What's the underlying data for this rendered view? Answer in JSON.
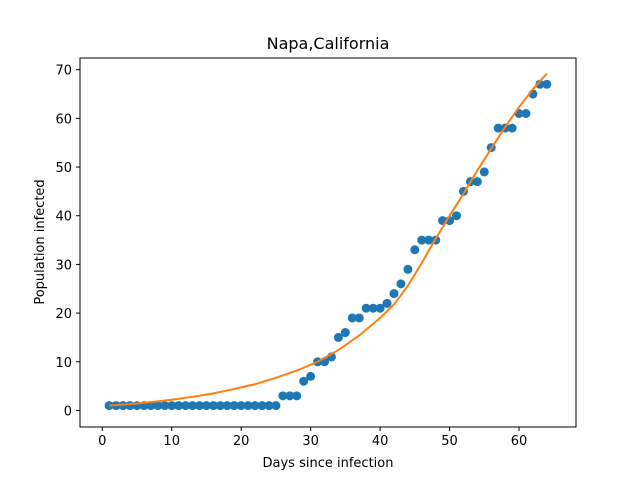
{
  "chart_data": {
    "type": "scatter",
    "title": "Napa,California",
    "xlabel": "Days since infection",
    "ylabel": "Population infected",
    "xlim": [
      -3.2,
      68.2
    ],
    "ylim": [
      -3.4,
      72.4
    ],
    "xticks": [
      0,
      10,
      20,
      30,
      40,
      50,
      60
    ],
    "yticks": [
      0,
      10,
      20,
      30,
      40,
      50,
      60,
      70
    ],
    "grid": false,
    "series": [
      {
        "kind": "scatter",
        "color": "#1f77b4",
        "x": [
          1,
          2,
          3,
          4,
          5,
          6,
          7,
          8,
          9,
          10,
          11,
          12,
          13,
          14,
          15,
          16,
          17,
          18,
          19,
          20,
          21,
          22,
          23,
          24,
          25,
          26,
          27,
          28,
          29,
          30,
          31,
          32,
          33,
          34,
          35,
          36,
          37,
          38,
          39,
          40,
          41,
          42,
          43,
          44,
          45,
          46,
          47,
          48,
          49,
          50,
          51,
          52,
          53,
          54,
          55,
          56,
          57,
          58,
          59,
          60,
          61,
          62,
          63,
          64
        ],
        "y": [
          1,
          1,
          1,
          1,
          1,
          1,
          1,
          1,
          1,
          1,
          1,
          1,
          1,
          1,
          1,
          1,
          1,
          1,
          1,
          1,
          1,
          1,
          1,
          1,
          1,
          3,
          3,
          3,
          6,
          7,
          10,
          10,
          11,
          15,
          16,
          19,
          19,
          21,
          21,
          21,
          22,
          24,
          26,
          29,
          33,
          35,
          35,
          35,
          39,
          39,
          40,
          45,
          47,
          47,
          49,
          54,
          58,
          58,
          58,
          61,
          61,
          65,
          67,
          67
        ]
      },
      {
        "kind": "line",
        "color": "#ff7f0e",
        "x": [
          1,
          4,
          7,
          10,
          13,
          16,
          19,
          22,
          25,
          28,
          31,
          34,
          37,
          40,
          42,
          44,
          46,
          48,
          50,
          52,
          54,
          56,
          58,
          60,
          62,
          64
        ],
        "y": [
          1.0,
          1.3,
          1.7,
          2.2,
          2.8,
          3.5,
          4.4,
          5.4,
          6.7,
          8.2,
          10.0,
          12.4,
          15.4,
          19.0,
          21.8,
          25.6,
          30.3,
          35.3,
          40.0,
          44.5,
          49.3,
          53.8,
          58.2,
          62.3,
          66.0,
          69.2
        ]
      }
    ]
  }
}
